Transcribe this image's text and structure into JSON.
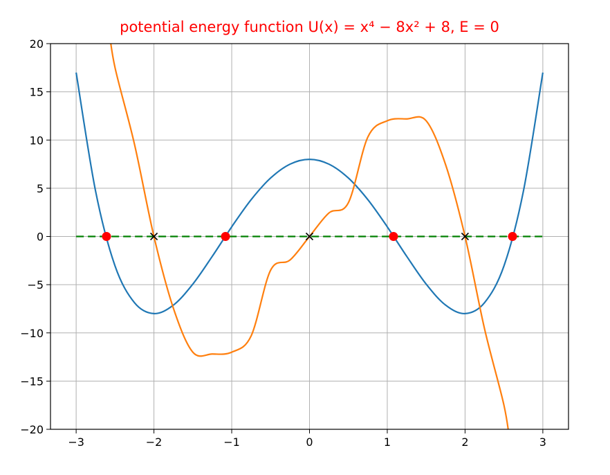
{
  "chart_data": {
    "type": "line",
    "title": "potential energy function U(x) = x⁴ − 8x² + 8,  E = 0",
    "title_color": "#ff0000",
    "xlabel": "",
    "ylabel": "",
    "xlim": [
      -3.33,
      3.33
    ],
    "ylim": [
      -20,
      20
    ],
    "grid": true,
    "x_ticks": [
      -3,
      -2,
      -1,
      0,
      1,
      2,
      3
    ],
    "x_tick_labels": [
      "−3",
      "−2",
      "−1",
      "0",
      "1",
      "2",
      "3"
    ],
    "y_ticks": [
      20,
      15,
      10,
      5,
      0,
      -5,
      -10,
      -15,
      -20
    ],
    "y_tick_labels": [
      "20",
      "15",
      "10",
      "5",
      "0",
      "−5",
      "−10",
      "−15",
      "−20"
    ],
    "series": [
      {
        "kind": "curve",
        "color": "#1f77b4",
        "x": [
          -3.0,
          -2.75,
          -2.5,
          -2.25,
          -2.0,
          -1.75,
          -1.5,
          -1.25,
          -1.0,
          -0.75,
          -0.5,
          -0.25,
          0.0,
          0.25,
          0.5,
          0.75,
          1.0,
          1.25,
          1.5,
          1.75,
          2.0,
          2.25,
          2.5,
          2.75,
          3.0
        ],
        "y": [
          17.0,
          4.69,
          -3.06,
          -6.87,
          -8.0,
          -7.12,
          -4.94,
          -2.06,
          1.0,
          3.82,
          6.06,
          7.5,
          8.0,
          7.5,
          6.06,
          3.82,
          1.0,
          -2.06,
          -4.94,
          -7.12,
          -8.0,
          -6.87,
          -3.06,
          4.69,
          17.0
        ]
      },
      {
        "kind": "curve",
        "color": "#ff7f0e",
        "x": [
          -2.58,
          -2.5,
          -2.25,
          -2.0,
          -1.75,
          -1.5,
          -1.25,
          -1.0,
          -0.75,
          -0.5,
          -0.25,
          0.0,
          0.25,
          0.5,
          0.75,
          1.0,
          1.25,
          1.5,
          1.75,
          2.0,
          2.25,
          2.5,
          2.58
        ],
        "y": [
          21.6,
          17.5,
          9.56,
          0.0,
          -7.44,
          -12.0,
          -12.19,
          -12.0,
          -10.31,
          -3.5,
          -2.44,
          0.0,
          2.44,
          3.5,
          10.31,
          12.0,
          12.19,
          12.0,
          7.44,
          0.0,
          -9.56,
          -17.5,
          -21.6
        ]
      },
      {
        "kind": "dashed-line",
        "color": "#008000",
        "x": [
          -3.0,
          3.0
        ],
        "y": [
          0,
          0
        ]
      },
      {
        "kind": "markers",
        "marker": "circle",
        "color": "#ff0000",
        "x": [
          -2.61,
          -1.08,
          1.08,
          2.61
        ],
        "y": [
          0,
          0,
          0,
          0
        ]
      },
      {
        "kind": "markers",
        "marker": "x",
        "color": "#000000",
        "x": [
          -2.0,
          0.0,
          2.0
        ],
        "y": [
          0,
          0,
          0
        ]
      }
    ]
  }
}
